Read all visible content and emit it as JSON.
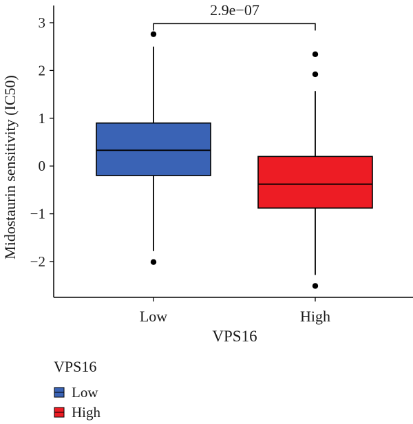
{
  "chart_data": {
    "type": "boxplot",
    "xlabel": "VPS16",
    "ylabel": "Midostaurin sensitivity (IC50)",
    "ylim": [
      -2.8,
      3.3
    ],
    "y_ticks": [
      3,
      2,
      1,
      0,
      -1,
      -2
    ],
    "y_tick_labels": [
      "3",
      "2",
      "1",
      "0",
      "−1",
      "−2"
    ],
    "categories": [
      "Low",
      "High"
    ],
    "series": [
      {
        "name": "Low",
        "color": "#3a63b5",
        "whisker_low": -1.78,
        "q1": -0.2,
        "median": 0.33,
        "q3": 0.9,
        "whisker_high": 2.5,
        "outliers": [
          2.76,
          -2.01
        ]
      },
      {
        "name": "High",
        "color": "#ed1c24",
        "whisker_low": -2.28,
        "q1": -0.88,
        "median": -0.38,
        "q3": 0.2,
        "whisker_high": 1.57,
        "outliers": [
          2.34,
          1.92,
          -2.51
        ]
      }
    ],
    "annotation": {
      "text": "2.9e−07",
      "from": "Low",
      "to": "High",
      "y": 2.98
    },
    "legend": {
      "title": "VPS16",
      "position": "bottom-left",
      "entries": [
        "Low",
        "High"
      ]
    },
    "grid": false
  }
}
